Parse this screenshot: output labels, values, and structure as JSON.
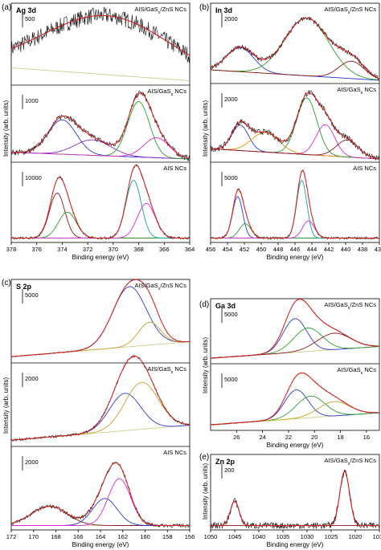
{
  "chart_data": [
    {
      "panel": "(a)",
      "type": "line",
      "element": "Ag 3d",
      "xlabel": "Binding energy (eV)",
      "ylabel": "Intensity (arb. units)",
      "xlim": [
        378,
        364
      ],
      "x_reversed": true,
      "xticks": [
        "378",
        "376",
        "374",
        "372",
        "370",
        "368",
        "366",
        "364"
      ],
      "subplots": [
        {
          "sample": "AIS/GaS_x/ZnS NCs",
          "scale_bar": "500",
          "noise": 0.14,
          "baseline": "decreasing",
          "peaks": [
            {
              "center": 370.5,
              "height": 1.0,
              "width": 5.0,
              "color": "#2b3bd6"
            }
          ]
        },
        {
          "sample": "AIS/GaS_x NCs",
          "scale_bar": "1000",
          "noise": 0.05,
          "baseline": "linear",
          "peaks": [
            {
              "center": 374.0,
              "height": 0.62,
              "width": 1.1,
              "color": "#2b3bd6"
            },
            {
              "center": 371.6,
              "height": 0.28,
              "width": 1.4,
              "color": "#8a2be2"
            },
            {
              "center": 368.0,
              "height": 1.0,
              "width": 0.85,
              "color": "#2ca02c"
            },
            {
              "center": 366.6,
              "height": 0.36,
              "width": 1.0,
              "color": "#d62ad6"
            }
          ]
        },
        {
          "sample": "AIS NCs",
          "scale_bar": "10000",
          "noise": 0.02,
          "baseline": "flat",
          "peaks": [
            {
              "center": 374.4,
              "height": 0.78,
              "width": 0.6,
              "color": "#8b1a1a"
            },
            {
              "center": 373.6,
              "height": 0.45,
              "width": 0.7,
              "color": "#2ca02c"
            },
            {
              "center": 368.4,
              "height": 1.0,
              "width": 0.6,
              "color": "#17a2a2"
            },
            {
              "center": 367.4,
              "height": 0.6,
              "width": 0.7,
              "color": "#d62ad6"
            }
          ]
        }
      ]
    },
    {
      "panel": "(b)",
      "type": "line",
      "element": "In 3d",
      "xlabel": "Binding energy (eV)",
      "ylabel": "Intensity (arb. units)",
      "xlim": [
        456,
        436
      ],
      "x_reversed": true,
      "xticks": [
        "456",
        "454",
        "452",
        "450",
        "448",
        "446",
        "444",
        "442",
        "440",
        "438",
        "436"
      ],
      "subplots": [
        {
          "sample": "AIS/GaS_x/ZnS NCs",
          "scale_bar": "2000",
          "noise": 0.04,
          "baseline": "shirley",
          "peaks": [
            {
              "center": 452.5,
              "height": 0.42,
              "width": 1.6,
              "color": "#2b3bd6"
            },
            {
              "center": 444.6,
              "height": 1.0,
              "width": 2.6,
              "color": "#2ca02c"
            },
            {
              "center": 439.3,
              "height": 0.3,
              "width": 1.5,
              "color": "#8b1a1a"
            }
          ]
        },
        {
          "sample": "AIS/GaS_x NCs",
          "scale_bar": "2000",
          "noise": 0.05,
          "baseline": "shirley",
          "peaks": [
            {
              "center": 452.5,
              "height": 0.45,
              "width": 1.0,
              "color": "#2b3bd6"
            },
            {
              "center": 449.5,
              "height": 0.35,
              "width": 1.6,
              "color": "#ff8c00"
            },
            {
              "center": 444.6,
              "height": 1.0,
              "width": 1.2,
              "color": "#2ca02c"
            },
            {
              "center": 442.4,
              "height": 0.55,
              "width": 1.1,
              "color": "#d62ad6"
            },
            {
              "center": 439.8,
              "height": 0.3,
              "width": 1.3,
              "color": "#8b1a1a"
            }
          ]
        },
        {
          "sample": "AIS NCs",
          "scale_bar": "5000",
          "noise": 0.02,
          "baseline": "flat",
          "peaks": [
            {
              "center": 452.8,
              "height": 0.72,
              "width": 0.6,
              "color": "#2b3bd6"
            },
            {
              "center": 451.9,
              "height": 0.25,
              "width": 0.7,
              "color": "#2ca02c"
            },
            {
              "center": 445.2,
              "height": 1.0,
              "width": 0.6,
              "color": "#17a2a2"
            },
            {
              "center": 444.4,
              "height": 0.3,
              "width": 0.7,
              "color": "#d62ad6"
            }
          ]
        }
      ]
    },
    {
      "panel": "(c)",
      "type": "line",
      "element": "S 2p",
      "xlabel": "Binding energy (eV)",
      "ylabel": "Intensity (arb. units)",
      "xlim": [
        172,
        156
      ],
      "x_reversed": true,
      "xticks": [
        "172",
        "170",
        "168",
        "166",
        "164",
        "162",
        "160",
        "158",
        "156"
      ],
      "subplots": [
        {
          "sample": "AIS/GaS_x/ZnS NCs",
          "scale_bar": "5000",
          "noise": 0.008,
          "baseline": "rising",
          "peaks": [
            {
              "center": 161.4,
              "height": 1.0,
              "width": 1.5,
              "color": "#2b3bd6"
            },
            {
              "center": 159.6,
              "height": 0.38,
              "width": 1.0,
              "color": "#c9a227"
            }
          ]
        },
        {
          "sample": "AIS/GaS_x NCs",
          "scale_bar": "2000",
          "noise": 0.02,
          "baseline": "rising",
          "peaks": [
            {
              "center": 161.8,
              "height": 0.62,
              "width": 1.4,
              "color": "#2b3bd6"
            },
            {
              "center": 160.3,
              "height": 0.78,
              "width": 1.5,
              "color": "#c9a227"
            }
          ]
        },
        {
          "sample": "AIS NCs",
          "scale_bar": "2000",
          "noise": 0.03,
          "baseline": "flat",
          "peaks": [
            {
              "center": 168.6,
              "height": 0.32,
              "width": 1.6,
              "color": "#8b1a1a"
            },
            {
              "center": 163.6,
              "height": 0.45,
              "width": 1.1,
              "color": "#2b3bd6"
            },
            {
              "center": 162.3,
              "height": 0.78,
              "width": 1.0,
              "color": "#d62ad6"
            }
          ]
        }
      ]
    },
    {
      "panel": "(d)",
      "type": "line",
      "element": "Ga 3d",
      "xlabel": "Binding energy (eV)",
      "ylabel": "Intensity (arb. units)",
      "xlim": [
        28,
        15
      ],
      "x_reversed": true,
      "xticks": [
        "26",
        "24",
        "22",
        "20",
        "18",
        "16"
      ],
      "subplots": [
        {
          "sample": "AIS/GaS_x/ZnS NCs",
          "scale_bar": "5000",
          "noise": 0.01,
          "baseline": "rising",
          "peaks": [
            {
              "center": 21.5,
              "height": 0.72,
              "width": 0.9,
              "color": "#2b3bd6"
            },
            {
              "center": 20.5,
              "height": 0.5,
              "width": 1.1,
              "color": "#2ca02c"
            },
            {
              "center": 18.5,
              "height": 0.35,
              "width": 1.3,
              "color": "#8b1a1a"
            }
          ]
        },
        {
          "sample": "AIS/GaS_x NCs",
          "scale_bar": "5000",
          "noise": 0.01,
          "baseline": "rising",
          "peaks": [
            {
              "center": 21.4,
              "height": 0.6,
              "width": 0.9,
              "color": "#2b3bd6"
            },
            {
              "center": 20.3,
              "height": 0.45,
              "width": 1.1,
              "color": "#2ca02c"
            },
            {
              "center": 18.5,
              "height": 0.3,
              "width": 1.2,
              "color": "#c9a227"
            }
          ]
        }
      ]
    },
    {
      "panel": "(e)",
      "type": "line",
      "element": "Zn 2p",
      "xlabel": "Binding energy (eV)",
      "ylabel": "Intensity (arb. units)",
      "xlim": [
        1050,
        1015
      ],
      "x_reversed": true,
      "xticks": [
        "1050",
        "1045",
        "1040",
        "1035",
        "1030",
        "1025",
        "1020",
        "1015"
      ],
      "subplots": [
        {
          "sample": "AIS/GaS_x/ZnS NCs",
          "scale_bar": "200",
          "noise": 0.06,
          "baseline": "flat",
          "peaks": [
            {
              "center": 1045.0,
              "height": 0.45,
              "width": 0.9,
              "color": "#8b1a1a"
            },
            {
              "center": 1022.2,
              "height": 1.0,
              "width": 1.0,
              "color": "#8b1a1a"
            }
          ]
        }
      ]
    }
  ]
}
